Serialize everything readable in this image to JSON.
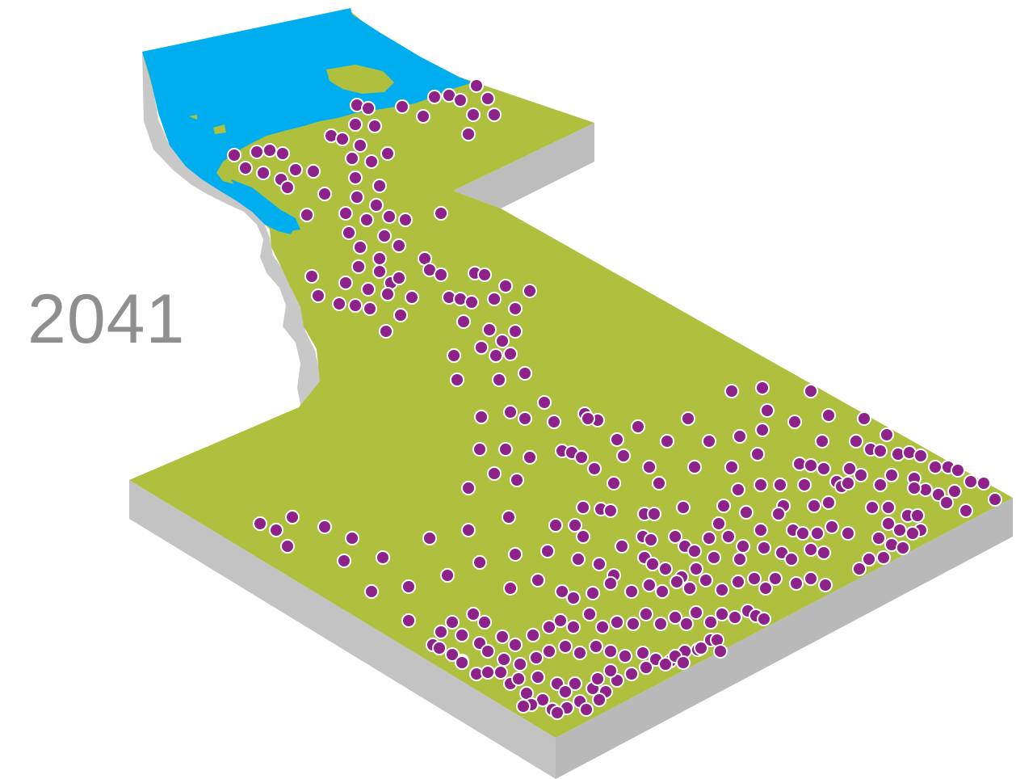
{
  "year": "2041",
  "colors": {
    "land": "#aec03e",
    "water": "#00aeef",
    "side": "#c3c3c3",
    "dot_fill": "#8e2289",
    "dot_stroke": "#ffffff",
    "year_text": "#8f8f8f"
  },
  "markers": {
    "icon": "circle-dot",
    "description_count_hint": "many",
    "point_style": "filled-circle-with-white-outline"
  }
}
